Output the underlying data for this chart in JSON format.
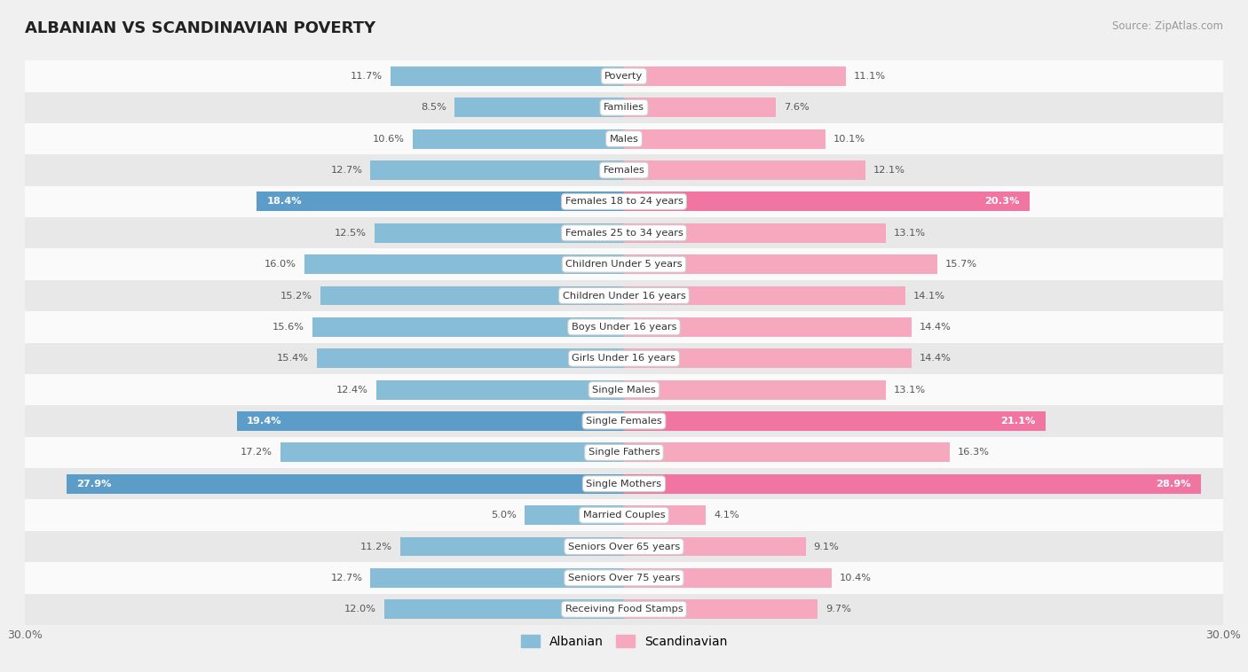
{
  "title": "ALBANIAN VS SCANDINAVIAN POVERTY",
  "source": "Source: ZipAtlas.com",
  "categories": [
    "Poverty",
    "Families",
    "Males",
    "Females",
    "Females 18 to 24 years",
    "Females 25 to 34 years",
    "Children Under 5 years",
    "Children Under 16 years",
    "Boys Under 16 years",
    "Girls Under 16 years",
    "Single Males",
    "Single Females",
    "Single Fathers",
    "Single Mothers",
    "Married Couples",
    "Seniors Over 65 years",
    "Seniors Over 75 years",
    "Receiving Food Stamps"
  ],
  "albanian": [
    11.7,
    8.5,
    10.6,
    12.7,
    18.4,
    12.5,
    16.0,
    15.2,
    15.6,
    15.4,
    12.4,
    19.4,
    17.2,
    27.9,
    5.0,
    11.2,
    12.7,
    12.0
  ],
  "scandinavian": [
    11.1,
    7.6,
    10.1,
    12.1,
    20.3,
    13.1,
    15.7,
    14.1,
    14.4,
    14.4,
    13.1,
    21.1,
    16.3,
    28.9,
    4.1,
    9.1,
    10.4,
    9.7
  ],
  "albanian_color": "#88bdd8",
  "scandinavian_color": "#f5a8be",
  "albanian_color_highlight": "#5b9dc8",
  "scandinavian_color_highlight": "#f075a0",
  "highlight_threshold": 18.0,
  "x_max": 30.0,
  "bg_color": "#f0f0f0",
  "row_bg_light": "#fafafa",
  "row_bg_dark": "#e8e8e8"
}
